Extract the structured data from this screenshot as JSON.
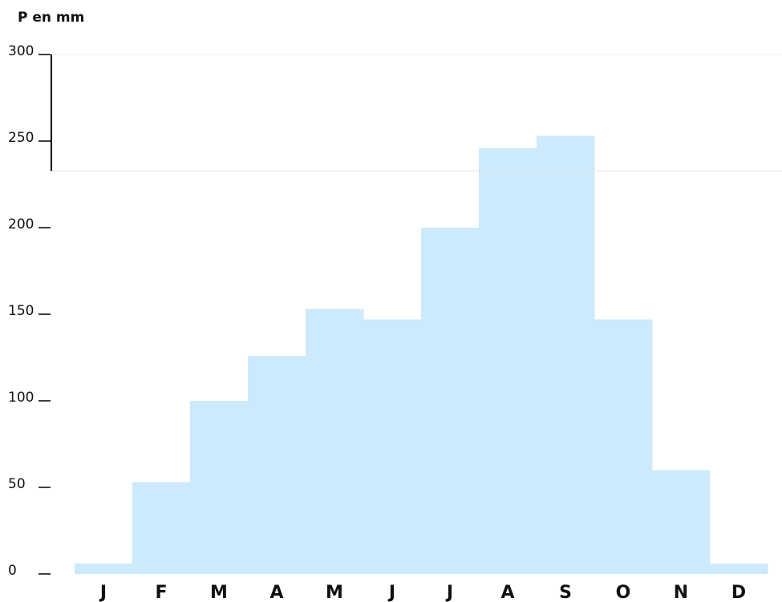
{
  "chart_data": {
    "type": "bar",
    "y_label": "P en mm",
    "categories": [
      "J",
      "F",
      "M",
      "A",
      "M",
      "J",
      "J",
      "A",
      "S",
      "O",
      "N",
      "D"
    ],
    "values": [
      6,
      53,
      100,
      126,
      153,
      147,
      200,
      246,
      253,
      147,
      60,
      6
    ],
    "color": "#cdeafc",
    "ylim": [
      0,
      300
    ],
    "yticks": [
      0,
      50,
      100,
      150,
      200,
      250,
      300
    ],
    "grid": false
  }
}
